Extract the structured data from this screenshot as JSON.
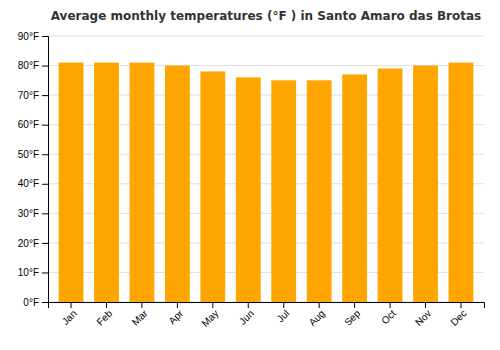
{
  "chart_data": {
    "type": "bar",
    "title": "Average monthly temperatures (°F ) in Santo Amaro das Brotas",
    "categories": [
      "Jan",
      "Feb",
      "Mar",
      "Apr",
      "May",
      "Jun",
      "Jul",
      "Aug",
      "Sep",
      "Oct",
      "Nov",
      "Dec"
    ],
    "values": [
      81,
      81,
      81,
      80,
      78,
      76,
      75,
      75,
      77,
      79,
      80,
      81
    ],
    "color": "#FFA500",
    "ylim": [
      0,
      90
    ],
    "yticks": [
      {
        "value": 0,
        "label": "0°F"
      },
      {
        "value": 10,
        "label": "10°F"
      },
      {
        "value": 20,
        "label": "20°F"
      },
      {
        "value": 30,
        "label": "30°F"
      },
      {
        "value": 40,
        "label": "40°F"
      },
      {
        "value": 50,
        "label": "50°F"
      },
      {
        "value": 60,
        "label": "60°F"
      },
      {
        "value": 70,
        "label": "70°F"
      },
      {
        "value": 80,
        "label": "80°F"
      },
      {
        "value": 90,
        "label": "90°F"
      }
    ],
    "grid": true
  }
}
